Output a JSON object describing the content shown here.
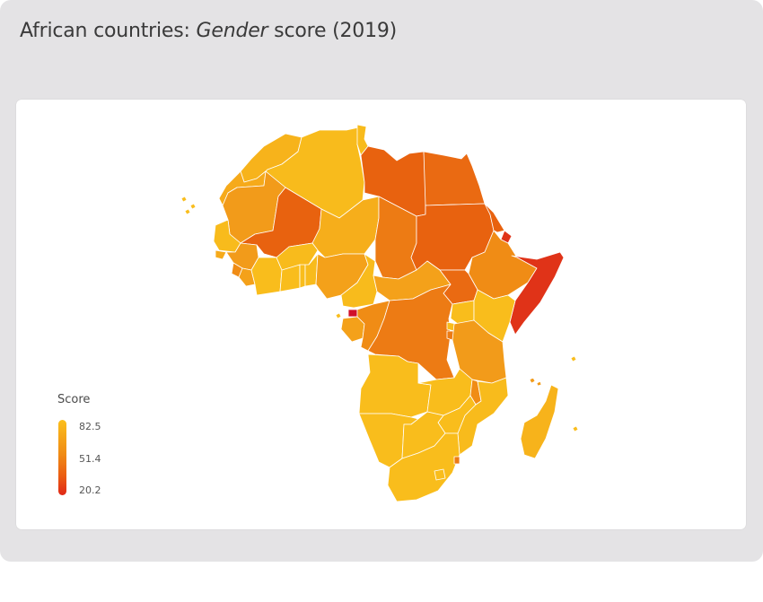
{
  "title": {
    "prefix": "African countries: ",
    "emphasis": "Gender",
    "suffix": " score (2019)"
  },
  "legend": {
    "title": "Score",
    "max": "82.5",
    "mid": "51.4",
    "min": "20.2",
    "color_high": "#fbbf1c",
    "color_mid": "#f08c15",
    "color_low": "#e02817"
  },
  "colors": {
    "yellow": "#f9bd1c",
    "orange_light": "#f4a11a",
    "orange": "#ef8516",
    "orange_dark": "#e86312",
    "red": "#e03318",
    "crimson": "#d1102b"
  }
}
